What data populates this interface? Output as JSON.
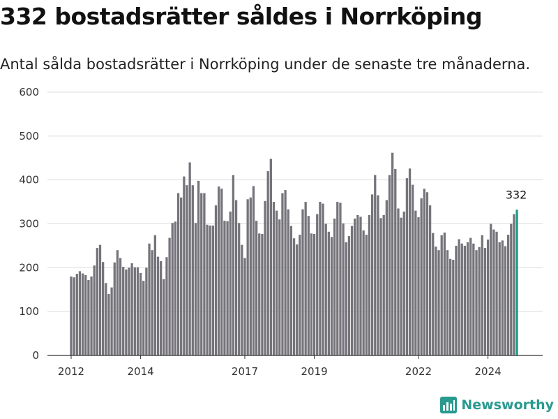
{
  "title": "332 bostadsrätter såldes i Norrköping",
  "subtitle": "Antal sålda bostadsrätter i Norrköping under de senaste tre månaderna.",
  "brand": "Newsworthy",
  "colors": {
    "bar": "#76747b",
    "highlight": "#1f9e8f",
    "grid": "#dddddd",
    "brand": "#2a9a8f"
  },
  "chart_data": {
    "type": "bar",
    "start": "2012-01",
    "ylim": [
      0,
      600
    ],
    "yticks": [
      0,
      100,
      200,
      300,
      400,
      500,
      600
    ],
    "xticks": [
      "2012",
      "2014",
      "2017",
      "2019",
      "2022",
      "2024"
    ],
    "highlight_label": "332",
    "values": [
      180,
      178,
      186,
      192,
      187,
      183,
      172,
      180,
      205,
      245,
      252,
      213,
      165,
      140,
      155,
      212,
      240,
      222,
      202,
      196,
      200,
      210,
      201,
      201,
      188,
      170,
      200,
      255,
      240,
      274,
      225,
      215,
      174,
      224,
      268,
      302,
      305,
      370,
      360,
      408,
      388,
      440,
      388,
      302,
      398,
      370,
      370,
      298,
      296,
      296,
      342,
      385,
      380,
      307,
      306,
      328,
      411,
      354,
      302,
      252,
      222,
      356,
      360,
      386,
      307,
      278,
      277,
      352,
      420,
      448,
      350,
      330,
      310,
      370,
      377,
      333,
      295,
      267,
      253,
      275,
      333,
      350,
      318,
      278,
      277,
      322,
      350,
      346,
      300,
      282,
      270,
      312,
      350,
      348,
      301,
      258,
      272,
      295,
      312,
      320,
      316,
      285,
      275,
      320,
      367,
      411,
      365,
      313,
      320,
      354,
      411,
      462,
      425,
      335,
      314,
      328,
      404,
      426,
      389,
      330,
      315,
      358,
      380,
      372,
      342,
      279,
      248,
      240,
      274,
      280,
      240,
      220,
      218,
      250,
      265,
      255,
      250,
      258,
      268,
      255,
      240,
      247,
      274,
      245,
      264,
      300,
      287,
      282,
      258,
      262,
      249,
      275,
      300,
      322,
      332
    ]
  }
}
